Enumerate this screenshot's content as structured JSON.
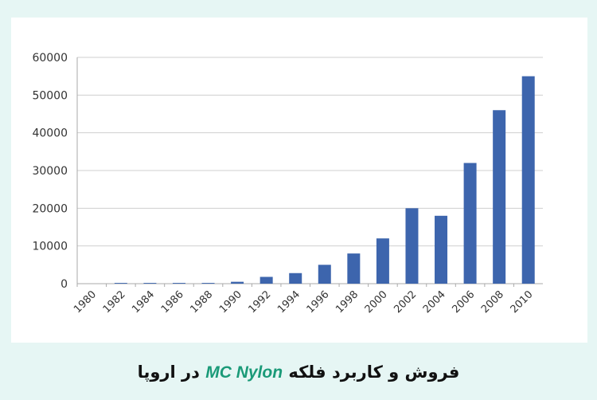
{
  "chart_data": {
    "type": "bar",
    "categories": [
      "1980",
      "1982",
      "1984",
      "1986",
      "1988",
      "1990",
      "1992",
      "1994",
      "1996",
      "1998",
      "2000",
      "2002",
      "2004",
      "2006",
      "2008",
      "2010"
    ],
    "values": [
      0,
      200,
      200,
      200,
      200,
      500,
      1800,
      2800,
      5000,
      8000,
      12000,
      20000,
      18000,
      32000,
      46000,
      55000
    ],
    "ylim": [
      0,
      60000
    ],
    "yticks": [
      0,
      10000,
      20000,
      30000,
      40000,
      50000,
      60000
    ],
    "grid": true,
    "bar_color": "#3d65ad",
    "xlabel": "",
    "ylabel": "",
    "title": ""
  },
  "caption": {
    "before": "فروش و کاربرد فلکه",
    "brand": "MC Nylon",
    "after": "در اروپا",
    "brand_color": "#1a9a78"
  }
}
